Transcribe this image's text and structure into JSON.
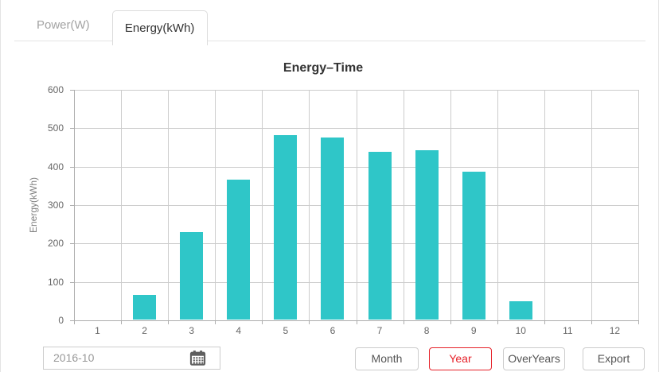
{
  "tabs": [
    {
      "label": "Power(W)",
      "active": false
    },
    {
      "label": "Energy(kWh)",
      "active": true
    }
  ],
  "chart_data": {
    "type": "bar",
    "title": "Energy–Time",
    "categories": [
      "1",
      "2",
      "3",
      "4",
      "5",
      "6",
      "7",
      "8",
      "9",
      "10",
      "11",
      "12"
    ],
    "values": [
      0,
      65,
      228,
      364,
      481,
      474,
      437,
      440,
      385,
      48,
      0,
      0
    ],
    "xlabel": "",
    "ylabel": "Energy(kWh)",
    "ylim": [
      0,
      600
    ],
    "ytick_step": 100,
    "grid": true,
    "legend_position": "none",
    "bar_color": "#2FC6C8"
  },
  "controls": {
    "date_value": "2016-10",
    "calendar_icon": "calendar-icon",
    "buttons": [
      {
        "label": "Month",
        "active": false
      },
      {
        "label": "Year",
        "active": true
      },
      {
        "label": "OverYears",
        "active": false
      },
      {
        "label": "Export",
        "active": false
      }
    ]
  },
  "colors": {
    "bar": "#2FC6C8",
    "active_red": "#E62129",
    "grid_line": "#CCCCCC",
    "axis_line": "#ADADAD"
  }
}
